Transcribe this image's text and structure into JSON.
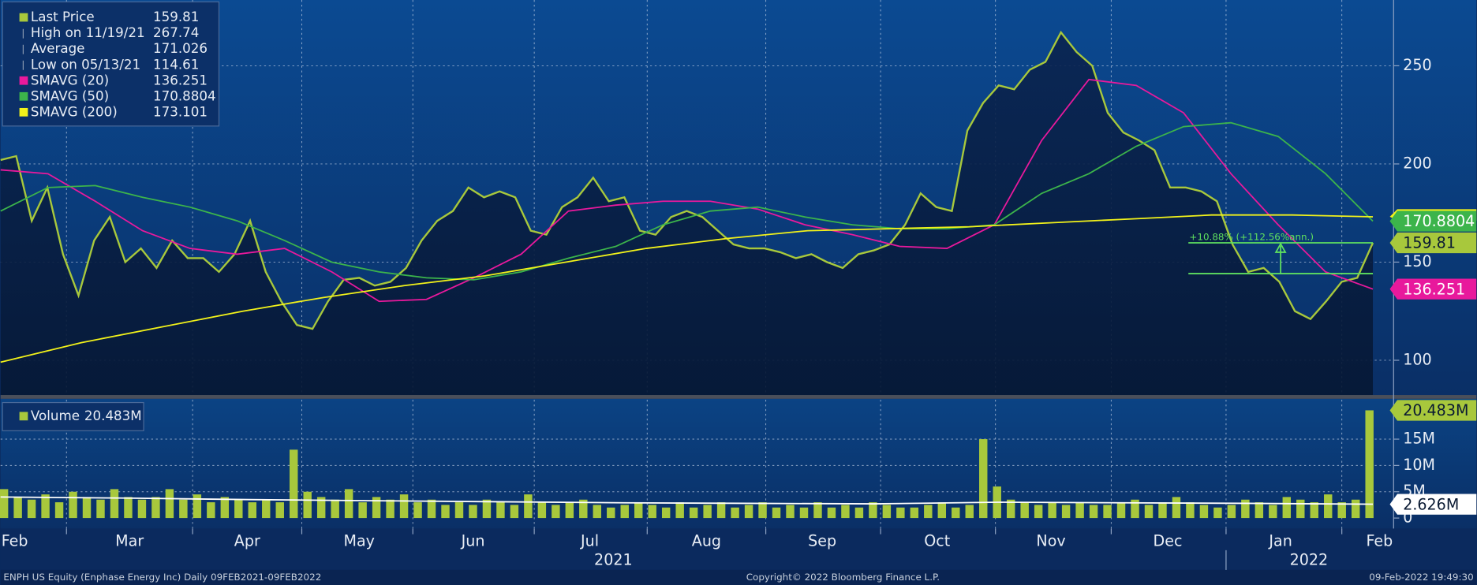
{
  "chart_data": [
    {
      "type": "line",
      "series": [
        {
          "name": "Last Price",
          "color": "#a8c83c",
          "values": [
            202,
            204,
            171,
            188,
            154,
            133,
            161,
            173,
            150,
            157,
            147,
            161,
            152,
            152,
            145,
            154,
            171,
            145,
            130,
            118,
            116,
            130,
            141,
            142,
            138,
            140,
            147,
            161,
            171,
            176,
            188,
            183,
            186,
            183,
            166,
            164,
            178,
            183,
            193,
            181,
            183,
            166,
            164,
            173,
            176,
            173,
            166,
            159,
            157,
            157,
            155,
            152,
            154,
            150,
            147,
            154,
            156,
            159,
            169,
            185,
            178,
            176,
            217,
            231,
            240,
            238,
            248,
            252,
            267,
            257,
            250,
            226,
            216,
            212,
            207,
            188,
            188,
            186,
            181,
            159,
            145,
            147,
            140,
            125,
            121,
            130,
            140,
            142,
            159.81
          ]
        },
        {
          "name": "SMAVG (20)",
          "color": "#e8199c",
          "values": [
            197,
            195,
            181,
            166,
            157,
            154,
            157,
            145,
            130,
            131,
            142,
            154,
            176,
            179,
            181,
            181,
            177,
            169,
            164,
            158,
            157,
            169,
            212,
            243,
            240,
            226,
            195,
            169,
            145,
            136.251
          ]
        },
        {
          "name": "SMAVG (50)",
          "color": "#3cb44b",
          "values": [
            176,
            188,
            189,
            183,
            178,
            171,
            161,
            150,
            145,
            142,
            141,
            145,
            152,
            158,
            169,
            176,
            178,
            173,
            169,
            167,
            167,
            169,
            185,
            195,
            209,
            219,
            221,
            214,
            195,
            170.8804
          ]
        },
        {
          "name": "SMAVG (200)",
          "color": "#f2f21a",
          "values": [
            99,
            109,
            117,
            125,
            132,
            138,
            143,
            150,
            157,
            162,
            166,
            167,
            168,
            170,
            172,
            174,
            174,
            173.101
          ]
        }
      ],
      "stats": [
        {
          "label": "High on 11/19/21",
          "value": 267.74
        },
        {
          "label": "Average",
          "value": 171.026
        },
        {
          "label": "Low on 05/13/21",
          "value": 114.61
        }
      ],
      "annotation": {
        "text": "+10.88% (+112.56%ann.)",
        "from": 144.13,
        "to": 159.81
      },
      "ylim": [
        82.3,
        283.5
      ],
      "yticks": [
        100,
        150,
        200,
        250
      ],
      "grid": true
    },
    {
      "type": "bar",
      "series": [
        {
          "name": "Volume",
          "color": "#a8c83c",
          "value_label": "20.483M",
          "values": [
            5.5,
            4,
            3.5,
            4.5,
            3,
            5,
            4,
            3.5,
            5.5,
            4,
            3.5,
            4,
            5.5,
            3.5,
            4.5,
            3,
            4,
            3.5,
            3,
            3.5,
            3,
            13,
            5,
            4,
            3.5,
            5.5,
            3,
            4,
            3.5,
            4.5,
            3,
            3.5,
            2.5,
            3,
            2.5,
            3.5,
            3,
            2.5,
            4.5,
            3,
            2.5,
            3,
            3.5,
            2.5,
            2,
            2.5,
            3,
            2.5,
            2,
            3,
            2,
            2.5,
            3,
            2,
            2.5,
            3,
            2,
            2.5,
            2,
            3,
            2,
            2.5,
            2,
            3,
            2.5,
            2,
            2,
            2.5,
            3,
            2,
            2.5,
            15,
            6,
            3.5,
            3,
            2.5,
            3,
            2.5,
            3,
            2.5,
            2.5,
            3,
            3.5,
            2.5,
            3,
            4,
            3,
            2.5,
            2,
            2.5,
            3.5,
            3,
            2.5,
            4,
            3.5,
            3,
            4.5,
            3,
            3.5,
            20.483
          ]
        }
      ],
      "average": {
        "color": "#ffffff",
        "value_label": "2.626M",
        "values": [
          4.0,
          3.8,
          3.5,
          3.3,
          3.1,
          2.9,
          2.8,
          2.7,
          3.0,
          2.9,
          2.8,
          2.626
        ]
      },
      "ylim": [
        -2,
        22.5
      ],
      "yticks": [
        0,
        {
          "value": 5,
          "label": "5M"
        },
        {
          "value": 10,
          "label": "10M"
        },
        {
          "value": 15,
          "label": "15M"
        }
      ],
      "grid": true
    }
  ],
  "x_axis": {
    "months": [
      "Feb",
      "Mar",
      "Apr",
      "May",
      "Jun",
      "Jul",
      "Aug",
      "Sep",
      "Oct",
      "Nov",
      "Dec",
      "Jan",
      "Feb"
    ],
    "years": [
      "2021",
      "2022"
    ]
  },
  "footer": {
    "left": "ENPH US Equity (Enphase Energy Inc)  Daily 09FEB2021-09FEB2022",
    "center": "Copyright© 2022 Bloomberg Finance L.P.",
    "right": "09-Feb-2022 19:49:30"
  }
}
